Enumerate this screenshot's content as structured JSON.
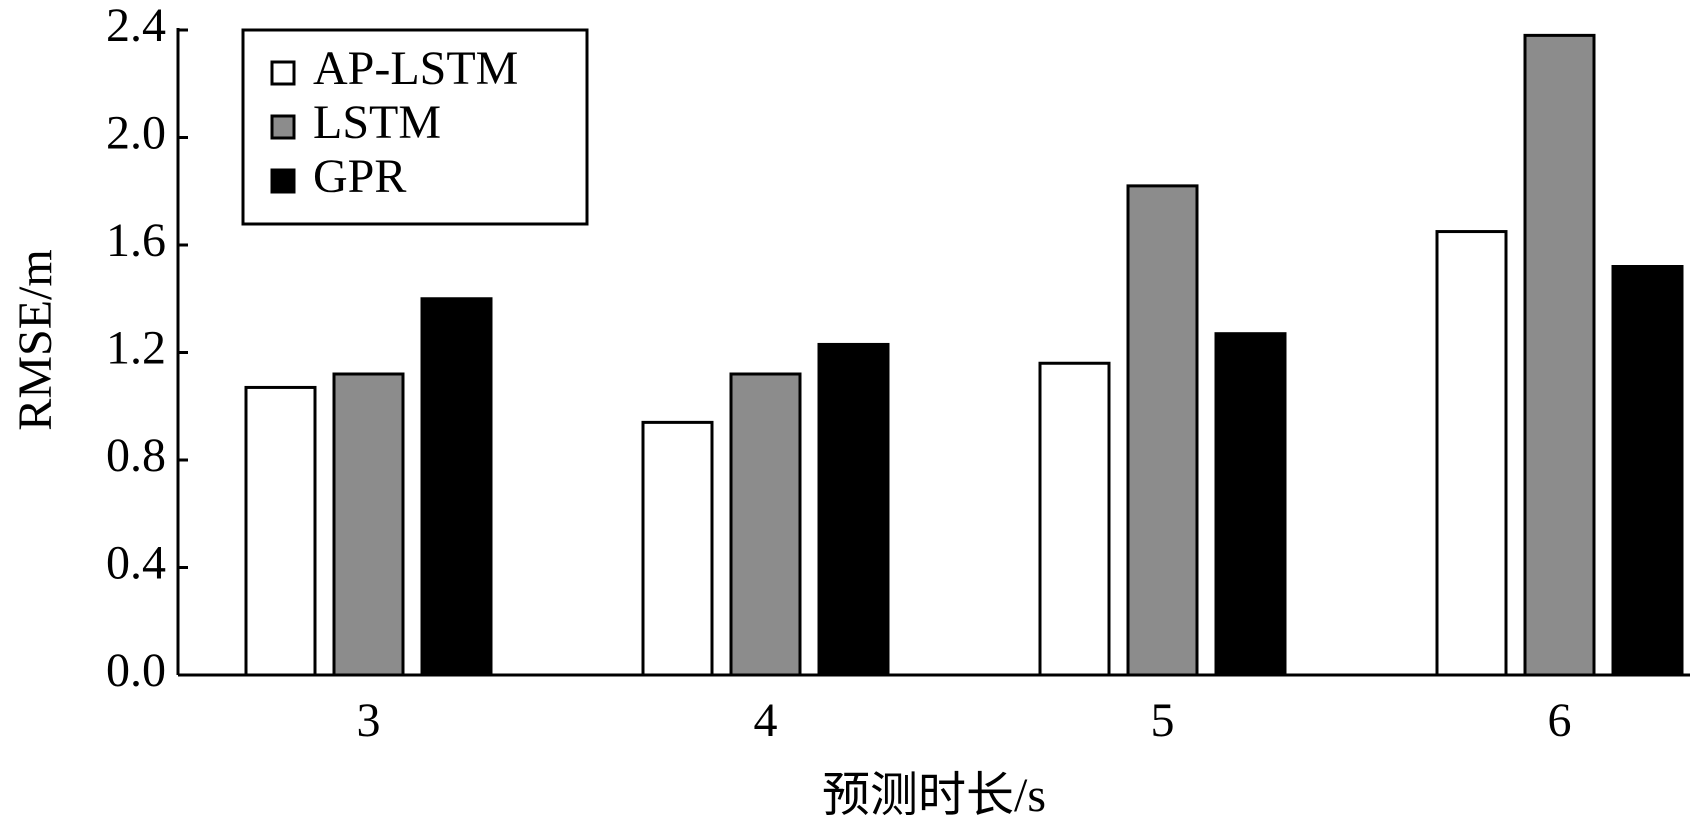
{
  "chart_data": {
    "type": "bar",
    "categories": [
      "3",
      "4",
      "5",
      "6"
    ],
    "x_label": "预测时长/s",
    "y_label": "RMSE/m",
    "series": [
      {
        "name": "AP-LSTM",
        "color": "#ffffff",
        "values": [
          1.07,
          0.94,
          1.16,
          1.65
        ]
      },
      {
        "name": "LSTM",
        "color": "#8c8c8c",
        "values": [
          1.12,
          1.12,
          1.82,
          2.38
        ]
      },
      {
        "name": "GPR",
        "color": "#000000",
        "values": [
          1.4,
          1.23,
          1.27,
          1.52
        ]
      }
    ],
    "ylim": [
      0,
      2.4
    ],
    "yticks": [
      {
        "value": 0,
        "label": "0.0"
      },
      0.4,
      0.8,
      1.2,
      1.6,
      {
        "value": 2.0,
        "label": "2.0"
      },
      2.4
    ],
    "legend": "upper-left",
    "grid": false
  }
}
